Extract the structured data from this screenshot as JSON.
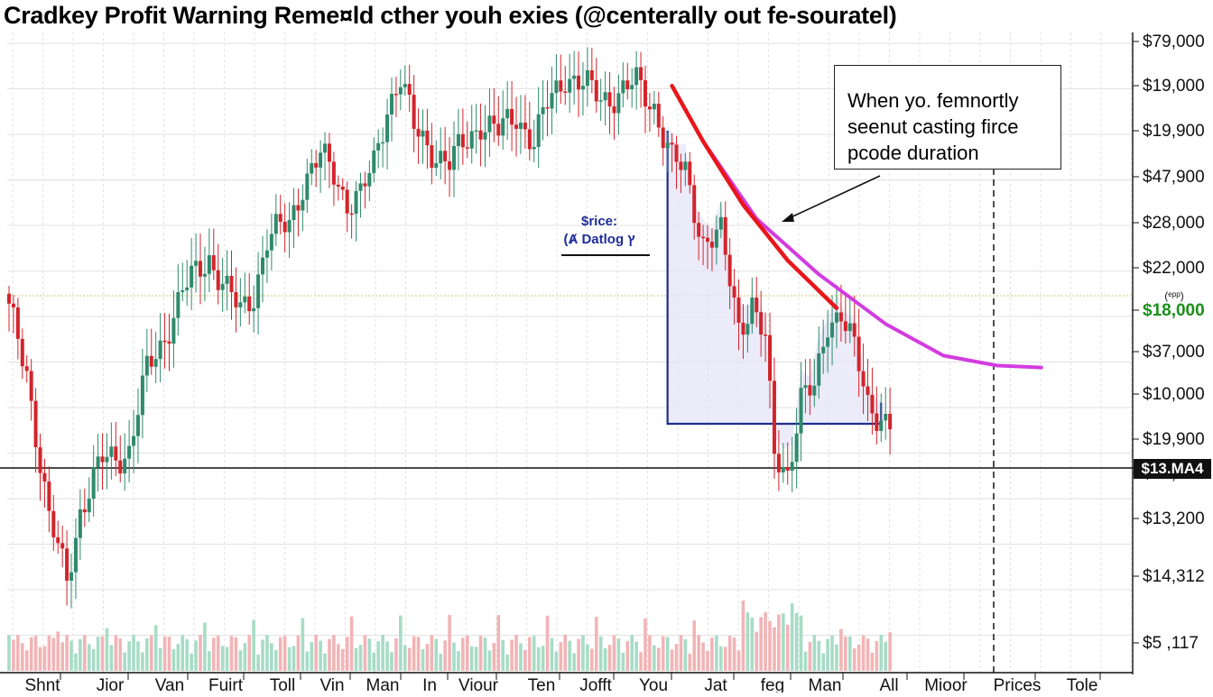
{
  "chart_data": {
    "type": "candlestick",
    "title": "Cradkey Profit Warning Reme¤ld cther youh exies (@centerally out fe-souratel)",
    "x_tick_labels": [
      "Shnt",
      "Jior",
      "Van",
      "Fuirt",
      "Toll",
      "Vin",
      "Man",
      "In",
      "Viour",
      "Ten",
      "Jofft",
      "You",
      "Jat",
      "feg",
      "Man",
      "All",
      "Mioor",
      "Prices",
      "Tole"
    ],
    "y_tick_labels": [
      "$79,000",
      "$19,000",
      "$19,900",
      "$47,900",
      "$28,000",
      "$22,000",
      "$18,000",
      "$37,000",
      "$10,000",
      "$19,900",
      "$10,200",
      "$13,200",
      "$14,312",
      "$5 ,117"
    ],
    "highlighted_tick": "$18,000",
    "current_price_badge": "$13.MA4",
    "current_price_label": "(ᵉᵖᵖ)",
    "annotation_box": [
      "When yo. femnortly",
      "seenut casting firce",
      "pcode duration"
    ],
    "region_note": [
      "$ricе:",
      "(Ⱥ Datlog ץ"
    ],
    "grid": true,
    "legend": "none",
    "colors": {
      "up": "#2f8a6c",
      "down": "#d3242b",
      "trend_projection": "#d33be0",
      "trend_actual": "#e8161b",
      "region_fill": "#e4e4f7",
      "region_stroke": "#1f2c8f",
      "volume_up": "#a7dcc6",
      "volume_down": "#f2b4b6",
      "grid": "#e2e2e2",
      "highlight_line": "#d7c36c"
    },
    "price_path": [
      {
        "i": 0,
        "close": 17.0
      },
      {
        "i": 4,
        "close": 14.0
      },
      {
        "i": 9,
        "close": 6.5
      },
      {
        "i": 13,
        "close": 3.5
      },
      {
        "i": 16,
        "close": 7.0
      },
      {
        "i": 21,
        "close": 9.5
      },
      {
        "i": 27,
        "close": 10.0
      },
      {
        "i": 31,
        "close": 14.0
      },
      {
        "i": 34,
        "close": 15.3
      },
      {
        "i": 39,
        "close": 18.0
      },
      {
        "i": 45,
        "close": 19.8
      },
      {
        "i": 49,
        "close": 18.0
      },
      {
        "i": 52,
        "close": 17.0
      },
      {
        "i": 55,
        "close": 18.0
      },
      {
        "i": 58,
        "close": 20.6
      },
      {
        "i": 63,
        "close": 21.5
      },
      {
        "i": 66,
        "close": 23.5
      },
      {
        "i": 70,
        "close": 24.8
      },
      {
        "i": 73,
        "close": 24.0
      },
      {
        "i": 76,
        "close": 22.6
      },
      {
        "i": 79,
        "close": 22.8
      },
      {
        "i": 82,
        "close": 24.4
      },
      {
        "i": 85,
        "close": 27.4
      },
      {
        "i": 88,
        "close": 28.8
      },
      {
        "i": 91,
        "close": 26.2
      },
      {
        "i": 96,
        "close": 25.0
      },
      {
        "i": 99,
        "close": 24.4
      },
      {
        "i": 102,
        "close": 25.4
      },
      {
        "i": 106,
        "close": 26.6
      },
      {
        "i": 110,
        "close": 26.0
      },
      {
        "i": 114,
        "close": 27.0
      },
      {
        "i": 118,
        "close": 25.5
      },
      {
        "i": 121,
        "close": 27.4
      },
      {
        "i": 125,
        "close": 29.0
      },
      {
        "i": 129,
        "close": 28.4
      },
      {
        "i": 133,
        "close": 27.8
      },
      {
        "i": 137,
        "close": 28.0
      },
      {
        "i": 141,
        "close": 28.5
      },
      {
        "i": 145,
        "close": 27.4
      },
      {
        "i": 149,
        "close": 24.6
      },
      {
        "i": 152,
        "close": 24.0
      },
      {
        "i": 156,
        "close": 20.6
      },
      {
        "i": 160,
        "close": 20.8
      },
      {
        "i": 164,
        "close": 16.4
      },
      {
        "i": 167,
        "close": 17.4
      },
      {
        "i": 170,
        "close": 15.4
      },
      {
        "i": 172,
        "close": 9.8
      },
      {
        "i": 175,
        "close": 9.0
      },
      {
        "i": 178,
        "close": 12.6
      },
      {
        "i": 181,
        "close": 13.0
      },
      {
        "i": 184,
        "close": 16.6
      },
      {
        "i": 187,
        "close": 17.0
      },
      {
        "i": 190,
        "close": 15.0
      },
      {
        "i": 193,
        "close": 12.4
      },
      {
        "i": 196,
        "close": 11.8
      },
      {
        "i": 198,
        "close": 11.2
      }
    ],
    "trend_actual": [
      [
        149,
        28.4
      ],
      [
        156,
        25.6
      ],
      [
        165,
        22.4
      ],
      [
        175,
        19.6
      ],
      [
        186,
        17.2
      ]
    ],
    "trend_projection": [
      [
        156,
        25.6
      ],
      [
        168,
        21.7
      ],
      [
        182,
        18.9
      ],
      [
        197,
        16.4
      ],
      [
        210,
        14.8
      ],
      [
        222,
        14.3
      ],
      [
        232,
        14.2
      ]
    ]
  }
}
